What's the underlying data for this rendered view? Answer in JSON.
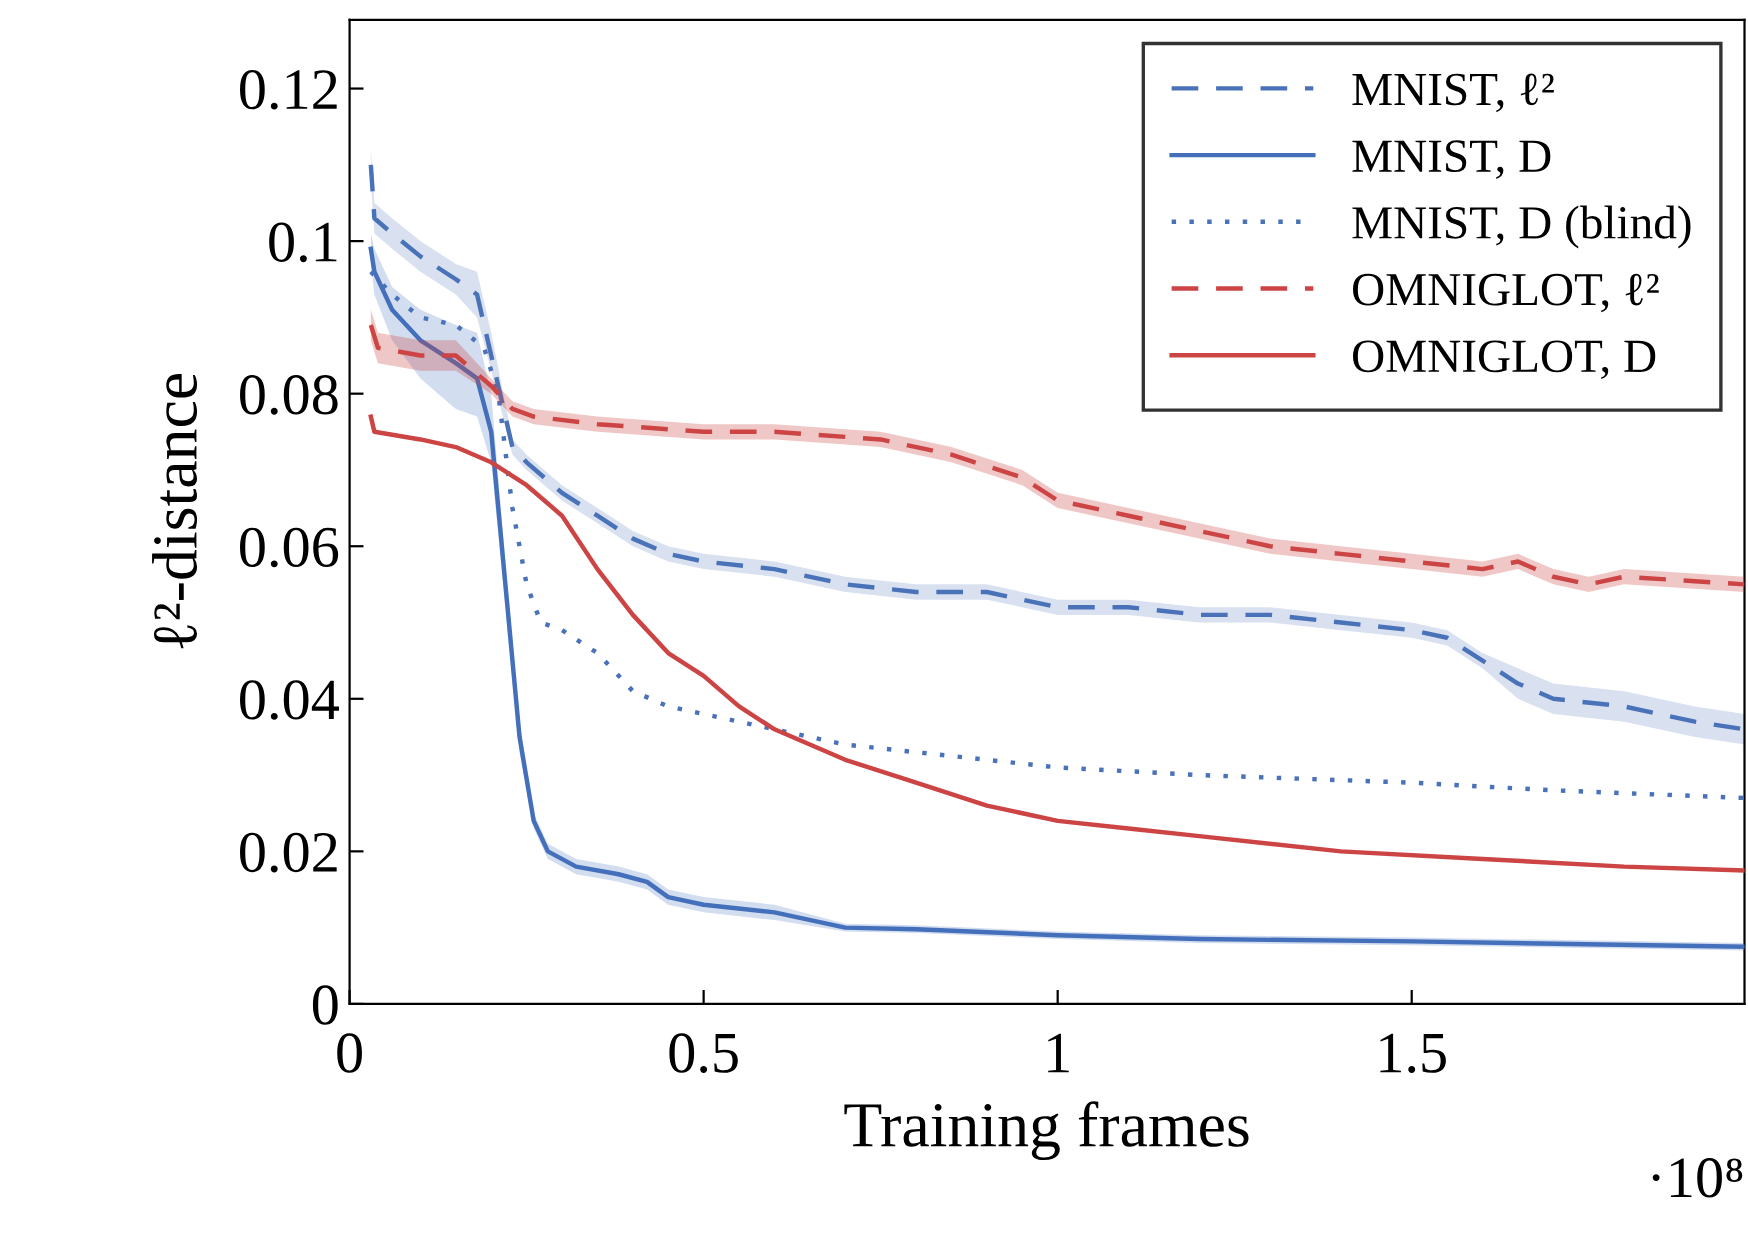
{
  "chart_data": {
    "type": "line",
    "xlabel": "Training frames",
    "ylabel": "ℓ²-distance",
    "annotations": [
      "·10⁸"
    ],
    "xlim": [
      0,
      1.97
    ],
    "xticks": [
      0,
      0.5,
      1,
      1.5
    ],
    "ylim": [
      0,
      0.129
    ],
    "yticks": [
      0,
      0.02,
      0.04,
      0.06,
      0.08,
      0.1,
      0.12
    ],
    "grid": false,
    "legend": "top right",
    "marker": "none",
    "series": [
      {
        "name": "MNIST, ℓ²",
        "color": "#4a72b8",
        "line_style": "dashed",
        "x": [
          0.03,
          0.035,
          0.06,
          0.1,
          0.15,
          0.18,
          0.2,
          0.23,
          0.25,
          0.3,
          0.35,
          0.4,
          0.45,
          0.5,
          0.6,
          0.7,
          0.8,
          0.85,
          0.9,
          1.0,
          1.1,
          1.2,
          1.3,
          1.4,
          1.5,
          1.55,
          1.6,
          1.65,
          1.7,
          1.8,
          1.9,
          1.97
        ],
        "values": [
          0.11,
          0.103,
          0.101,
          0.098,
          0.095,
          0.093,
          0.085,
          0.073,
          0.071,
          0.067,
          0.064,
          0.061,
          0.059,
          0.058,
          0.057,
          0.055,
          0.054,
          0.054,
          0.054,
          0.052,
          0.052,
          0.051,
          0.051,
          0.05,
          0.049,
          0.048,
          0.045,
          0.042,
          0.04,
          0.039,
          0.037,
          0.036
        ],
        "lower": [
          0.108,
          0.101,
          0.099,
          0.096,
          0.093,
          0.09,
          0.083,
          0.072,
          0.07,
          0.066,
          0.063,
          0.06,
          0.058,
          0.057,
          0.056,
          0.054,
          0.053,
          0.053,
          0.053,
          0.051,
          0.051,
          0.05,
          0.05,
          0.049,
          0.048,
          0.047,
          0.044,
          0.04,
          0.038,
          0.037,
          0.035,
          0.034
        ],
        "upper": [
          0.112,
          0.105,
          0.103,
          0.1,
          0.097,
          0.096,
          0.088,
          0.074,
          0.072,
          0.068,
          0.065,
          0.062,
          0.06,
          0.059,
          0.058,
          0.056,
          0.055,
          0.055,
          0.055,
          0.053,
          0.053,
          0.052,
          0.052,
          0.051,
          0.05,
          0.049,
          0.046,
          0.044,
          0.042,
          0.041,
          0.039,
          0.038
        ]
      },
      {
        "name": "MNIST, D",
        "color": "#446fbb",
        "line_style": "solid",
        "x": [
          0.03,
          0.035,
          0.06,
          0.1,
          0.15,
          0.18,
          0.2,
          0.22,
          0.24,
          0.26,
          0.28,
          0.32,
          0.38,
          0.42,
          0.45,
          0.5,
          0.6,
          0.7,
          0.8,
          1.0,
          1.2,
          1.5,
          1.97
        ],
        "values": [
          0.099,
          0.096,
          0.091,
          0.087,
          0.084,
          0.082,
          0.075,
          0.055,
          0.035,
          0.024,
          0.02,
          0.018,
          0.017,
          0.016,
          0.014,
          0.013,
          0.012,
          0.01,
          0.0098,
          0.009,
          0.0085,
          0.0082,
          0.0075
        ],
        "lower": [
          0.097,
          0.093,
          0.087,
          0.082,
          0.078,
          0.077,
          0.071,
          0.052,
          0.033,
          0.023,
          0.019,
          0.017,
          0.016,
          0.015,
          0.013,
          0.012,
          0.011,
          0.0095,
          0.0093,
          0.0085,
          0.008,
          0.0077,
          0.007
        ],
        "upper": [
          0.101,
          0.099,
          0.094,
          0.091,
          0.089,
          0.088,
          0.08,
          0.058,
          0.037,
          0.025,
          0.021,
          0.019,
          0.018,
          0.017,
          0.015,
          0.014,
          0.013,
          0.0105,
          0.0103,
          0.0095,
          0.009,
          0.0087,
          0.008
        ]
      },
      {
        "name": "MNIST, D (blind)",
        "color": "#4a72b8",
        "line_style": "dotted",
        "x": [
          0.03,
          0.06,
          0.1,
          0.15,
          0.19,
          0.21,
          0.23,
          0.25,
          0.27,
          0.3,
          0.35,
          0.4,
          0.45,
          0.5,
          0.6,
          0.7,
          0.8,
          1.0,
          1.2,
          1.5,
          1.7,
          1.97
        ],
        "values": [
          0.096,
          0.093,
          0.09,
          0.089,
          0.086,
          0.08,
          0.065,
          0.055,
          0.05,
          0.049,
          0.046,
          0.041,
          0.039,
          0.038,
          0.036,
          0.034,
          0.033,
          0.031,
          0.03,
          0.029,
          0.028,
          0.027
        ]
      },
      {
        "name": "OMNIGLOT, ℓ²",
        "color": "#cc4444",
        "line_style": "dashed",
        "x": [
          0.03,
          0.04,
          0.1,
          0.15,
          0.2,
          0.23,
          0.26,
          0.35,
          0.5,
          0.6,
          0.75,
          0.85,
          0.95,
          1.0,
          1.1,
          1.2,
          1.3,
          1.4,
          1.5,
          1.6,
          1.65,
          1.7,
          1.75,
          1.8,
          1.97
        ],
        "values": [
          0.089,
          0.086,
          0.085,
          0.085,
          0.081,
          0.078,
          0.077,
          0.076,
          0.075,
          0.075,
          0.074,
          0.072,
          0.069,
          0.066,
          0.064,
          0.062,
          0.06,
          0.059,
          0.058,
          0.057,
          0.058,
          0.056,
          0.055,
          0.056,
          0.055
        ],
        "lower": [
          0.087,
          0.084,
          0.083,
          0.083,
          0.08,
          0.077,
          0.076,
          0.075,
          0.074,
          0.074,
          0.073,
          0.071,
          0.068,
          0.065,
          0.063,
          0.061,
          0.059,
          0.058,
          0.057,
          0.056,
          0.057,
          0.055,
          0.054,
          0.055,
          0.054
        ],
        "upper": [
          0.091,
          0.088,
          0.087,
          0.087,
          0.082,
          0.079,
          0.078,
          0.077,
          0.076,
          0.076,
          0.075,
          0.073,
          0.07,
          0.067,
          0.065,
          0.063,
          0.061,
          0.06,
          0.059,
          0.058,
          0.059,
          0.057,
          0.056,
          0.057,
          0.056
        ]
      },
      {
        "name": "OMNIGLOT, D",
        "color": "#cc4444",
        "line_style": "solid",
        "x": [
          0.03,
          0.035,
          0.1,
          0.15,
          0.2,
          0.25,
          0.3,
          0.35,
          0.4,
          0.45,
          0.5,
          0.55,
          0.6,
          0.7,
          0.8,
          0.9,
          1.0,
          1.1,
          1.2,
          1.4,
          1.6,
          1.8,
          1.97
        ],
        "values": [
          0.077,
          0.075,
          0.074,
          0.073,
          0.071,
          0.068,
          0.064,
          0.057,
          0.051,
          0.046,
          0.043,
          0.039,
          0.036,
          0.032,
          0.029,
          0.026,
          0.024,
          0.023,
          0.022,
          0.02,
          0.019,
          0.018,
          0.0175
        ]
      }
    ]
  }
}
